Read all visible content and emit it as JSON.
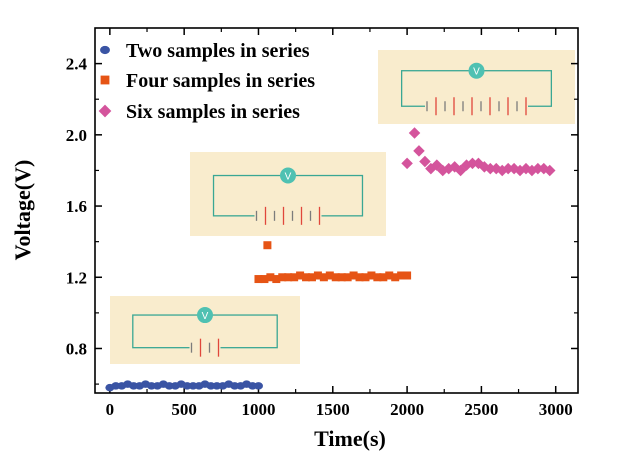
{
  "chart_data": {
    "type": "scatter",
    "xlabel": "Time(s)",
    "ylabel": "Voltage(V)",
    "xlim": [
      -100,
      3150
    ],
    "ylim": [
      0.55,
      2.6
    ],
    "xticks": [
      0,
      500,
      1000,
      1500,
      2000,
      2500,
      3000
    ],
    "yticks": [
      0.8,
      1.2,
      1.6,
      2.0,
      2.4
    ],
    "ytick_labels": [
      "0.8",
      "1.2",
      "1.6",
      "2.0",
      "2.4"
    ],
    "grid": false,
    "legend_position": "top-left",
    "series": [
      {
        "name": "Two samples in series",
        "marker": "circle",
        "color": "#3a54a4",
        "x": [
          0,
          40,
          80,
          120,
          160,
          200,
          240,
          280,
          320,
          360,
          400,
          440,
          480,
          520,
          560,
          600,
          640,
          680,
          720,
          760,
          800,
          840,
          880,
          920,
          960,
          1000
        ],
        "y": [
          0.58,
          0.59,
          0.59,
          0.6,
          0.59,
          0.59,
          0.6,
          0.59,
          0.59,
          0.6,
          0.59,
          0.59,
          0.6,
          0.59,
          0.59,
          0.59,
          0.6,
          0.59,
          0.59,
          0.59,
          0.6,
          0.59,
          0.59,
          0.6,
          0.59,
          0.59
        ]
      },
      {
        "name": "Four samples in series",
        "marker": "square",
        "color": "#e65415",
        "x": [
          1060,
          1000,
          1040,
          1080,
          1120,
          1160,
          1200,
          1240,
          1280,
          1320,
          1360,
          1400,
          1440,
          1480,
          1520,
          1560,
          1600,
          1640,
          1680,
          1720,
          1760,
          1800,
          1840,
          1880,
          1920,
          1960,
          2000
        ],
        "y": [
          1.38,
          1.19,
          1.19,
          1.2,
          1.19,
          1.2,
          1.2,
          1.2,
          1.21,
          1.2,
          1.2,
          1.21,
          1.2,
          1.21,
          1.2,
          1.2,
          1.2,
          1.21,
          1.2,
          1.2,
          1.21,
          1.2,
          1.2,
          1.21,
          1.2,
          1.21,
          1.21
        ]
      },
      {
        "name": "Six samples in series",
        "marker": "diamond",
        "color": "#d4549c",
        "x": [
          2000,
          2050,
          2080,
          2120,
          2160,
          2200,
          2240,
          2280,
          2320,
          2360,
          2400,
          2440,
          2480,
          2520,
          2560,
          2600,
          2640,
          2680,
          2720,
          2760,
          2800,
          2840,
          2880,
          2920,
          2960
        ],
        "y": [
          1.84,
          2.01,
          1.91,
          1.85,
          1.81,
          1.83,
          1.8,
          1.81,
          1.82,
          1.8,
          1.83,
          1.84,
          1.84,
          1.82,
          1.81,
          1.81,
          1.8,
          1.81,
          1.81,
          1.8,
          1.81,
          1.8,
          1.81,
          1.81,
          1.8
        ]
      }
    ],
    "insets": [
      {
        "name": "two-sample-circuit",
        "cells": 2,
        "meter_label": "V"
      },
      {
        "name": "four-sample-circuit",
        "cells": 4,
        "meter_label": "V"
      },
      {
        "name": "six-sample-circuit",
        "cells": 6,
        "meter_label": "V"
      }
    ],
    "colors": {
      "inset_background": "#f9eccd",
      "wire": "#3aa794",
      "meter_fill": "#4fc1b2",
      "cell_red": "#e0473b",
      "cell_gray": "#7c7c7c"
    }
  }
}
